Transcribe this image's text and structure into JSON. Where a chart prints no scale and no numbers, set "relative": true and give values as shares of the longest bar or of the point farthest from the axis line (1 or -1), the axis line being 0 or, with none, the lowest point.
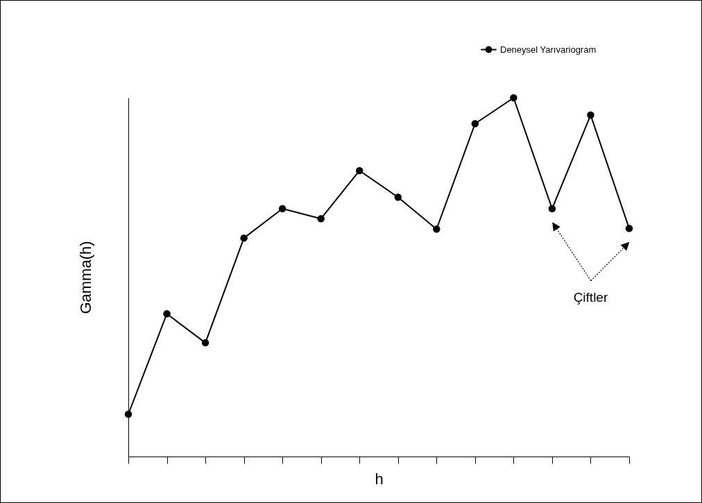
{
  "chart_data": {
    "type": "line",
    "relative": true,
    "xlabel": "h",
    "ylabel": "Gamma(h)",
    "legend": "top right",
    "marker": "circle",
    "line_style": "solid",
    "categories": [
      null,
      null,
      null,
      null,
      null,
      null,
      null,
      null,
      null,
      null,
      null,
      null,
      null,
      null
    ],
    "series": [
      {
        "name": "Deneysel Yarıvariogram",
        "color": "#000000",
        "values": [
          0.118,
          0.398,
          0.317,
          0.609,
          0.691,
          0.663,
          0.797,
          0.723,
          0.634,
          0.928,
          1,
          0.691,
          0.952,
          0.636
        ]
      }
    ],
    "annotations": [
      "Çiftler"
    ]
  }
}
